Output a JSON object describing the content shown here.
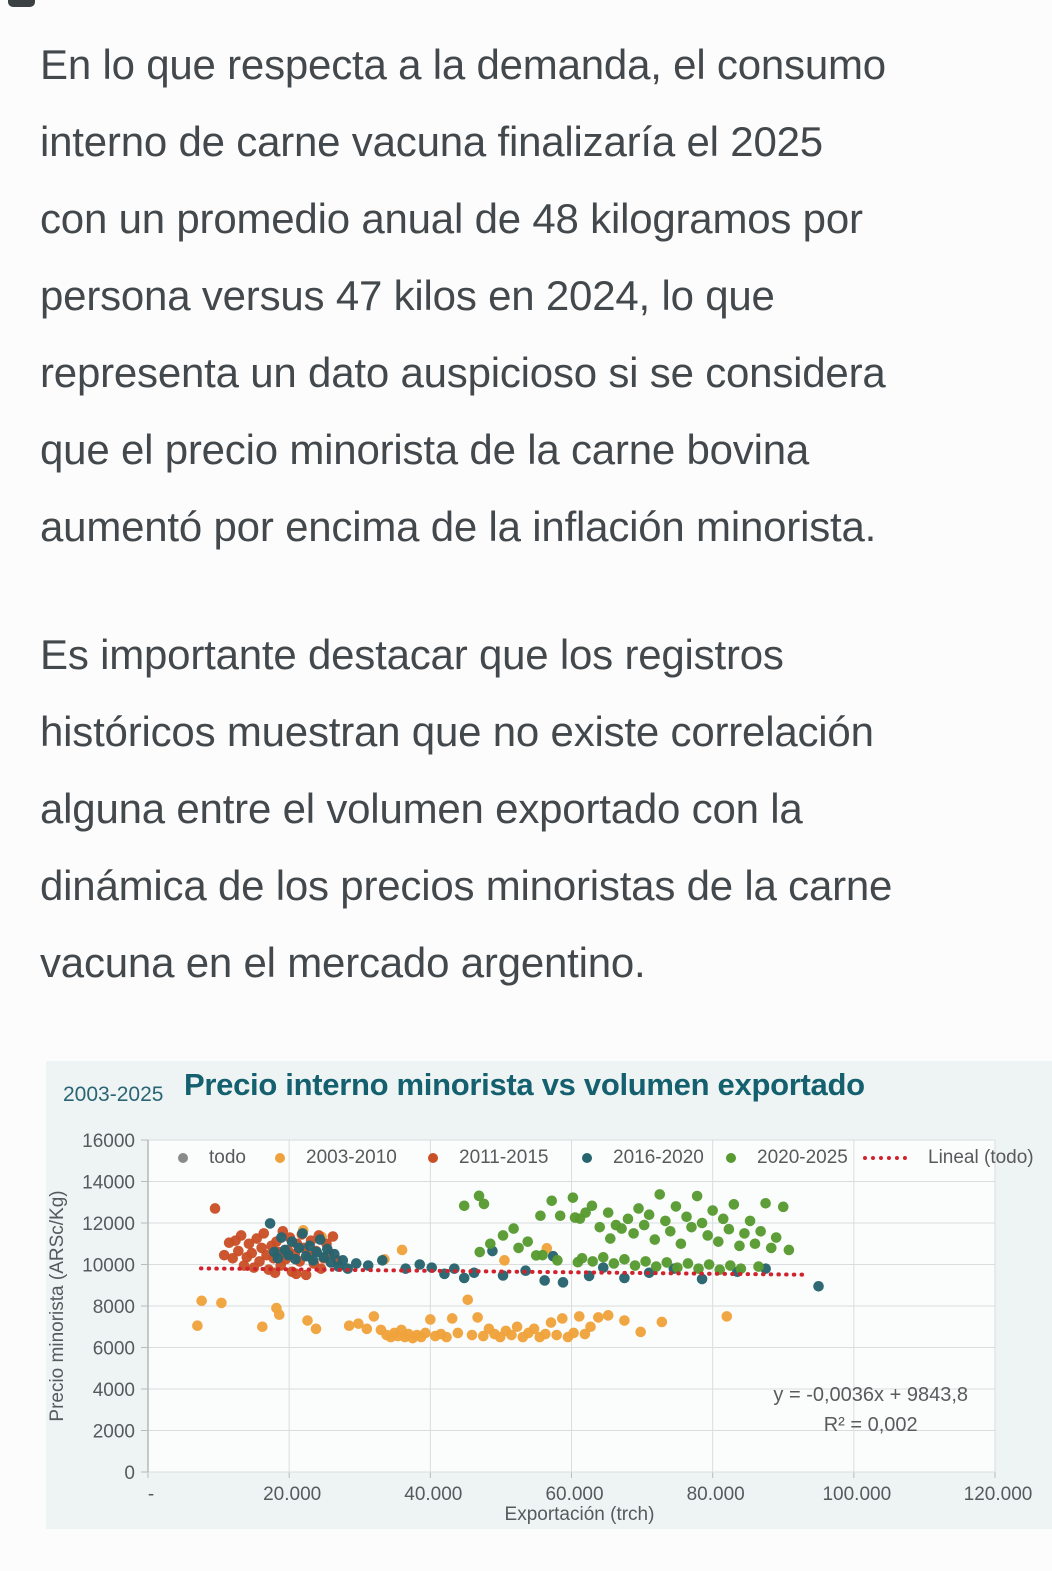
{
  "article": {
    "paragraphs": [
      {
        "lines": [
          "En lo que respecta a la demanda, el consumo",
          "interno de carne vacuna finalizaría el 2025",
          "con un promedio anual de 48 kilogramos por",
          "persona versus 47 kilos en 2024, lo que",
          "representa un dato auspicioso si se considera",
          "que el precio minorista de la carne bovina",
          "aumentó por encima de la inflación minorista."
        ]
      },
      {
        "lines": [
          "Es importante destacar que los registros",
          "históricos muestran que no existe correlación",
          "alguna entre el volumen exportado con la",
          "dinámica de los precios minoristas de la carne",
          "vacuna en el mercado argentino."
        ]
      }
    ]
  },
  "chart_data": {
    "type": "scatter",
    "title": "Precio interno minorista vs volumen exportado",
    "subtitle": "2003-2025",
    "title_color": "#14606f",
    "xlabel": "Exportación (trch)",
    "ylabel": "Precio minorista (ARSc/Kg)",
    "xlim": [
      0,
      120000
    ],
    "ylim": [
      0,
      16000
    ],
    "x_ticks": [
      "-",
      "20.000",
      "40.000",
      "60.000",
      "80.000",
      "100.000",
      "120.000"
    ],
    "y_ticks": [
      "0",
      "2000",
      "4000",
      "6000",
      "8000",
      "10000",
      "12000",
      "14000",
      "16000"
    ],
    "grid": true,
    "legend_position": "top",
    "trendline": {
      "label": "Lineal (todo)",
      "color": "#d0232e",
      "x1": 7500,
      "y1": 9812,
      "x2": 93500,
      "y2": 9507,
      "equation": "y = -0,0036x + 9843,8",
      "r2": "R² = 0,002"
    },
    "series": [
      {
        "name": "todo",
        "color": "#8a8a8a",
        "points": []
      },
      {
        "name": "2003-2010",
        "color": "#efa23b",
        "points": [
          [
            22000,
            11650
          ],
          [
            24600,
            11330
          ],
          [
            33500,
            10250
          ],
          [
            36000,
            10700
          ],
          [
            50500,
            10200
          ],
          [
            56500,
            10780
          ],
          [
            7600,
            8250
          ],
          [
            7000,
            7050
          ],
          [
            10400,
            8150
          ],
          [
            16200,
            7000
          ],
          [
            18200,
            7900
          ],
          [
            18600,
            7580
          ],
          [
            22600,
            7300
          ],
          [
            23800,
            6900
          ],
          [
            28500,
            7050
          ],
          [
            29800,
            7150
          ],
          [
            31000,
            6900
          ],
          [
            32000,
            7500
          ],
          [
            33000,
            6850
          ],
          [
            33800,
            6600
          ],
          [
            34400,
            6500
          ],
          [
            34900,
            6700
          ],
          [
            35400,
            6550
          ],
          [
            35900,
            6850
          ],
          [
            36400,
            6500
          ],
          [
            36900,
            6650
          ],
          [
            37500,
            6450
          ],
          [
            38100,
            6600
          ],
          [
            38700,
            6500
          ],
          [
            39300,
            6700
          ],
          [
            40000,
            7350
          ],
          [
            40700,
            6550
          ],
          [
            41500,
            6650
          ],
          [
            42300,
            6500
          ],
          [
            43100,
            7400
          ],
          [
            43900,
            6700
          ],
          [
            45300,
            8300
          ],
          [
            45900,
            6600
          ],
          [
            46700,
            7450
          ],
          [
            47500,
            6550
          ],
          [
            48300,
            6900
          ],
          [
            49100,
            6650
          ],
          [
            49900,
            6500
          ],
          [
            50700,
            6800
          ],
          [
            51500,
            6600
          ],
          [
            52300,
            7000
          ],
          [
            53100,
            6500
          ],
          [
            53900,
            6700
          ],
          [
            54700,
            6900
          ],
          [
            55500,
            6500
          ],
          [
            56300,
            6650
          ],
          [
            57100,
            7200
          ],
          [
            57900,
            6600
          ],
          [
            58700,
            7400
          ],
          [
            59500,
            6500
          ],
          [
            60300,
            6700
          ],
          [
            61100,
            7500
          ],
          [
            61900,
            6650
          ],
          [
            62700,
            7000
          ],
          [
            63800,
            7450
          ],
          [
            65200,
            7550
          ],
          [
            67500,
            7300
          ],
          [
            69800,
            6750
          ],
          [
            72800,
            7230
          ],
          [
            82000,
            7500
          ]
        ]
      },
      {
        "name": "2011-2015",
        "color": "#c94f26",
        "points": [
          [
            9500,
            12700
          ],
          [
            10800,
            10450
          ],
          [
            11500,
            11050
          ],
          [
            12000,
            10300
          ],
          [
            12400,
            11150
          ],
          [
            12800,
            10650
          ],
          [
            13200,
            11400
          ],
          [
            13600,
            9950
          ],
          [
            14000,
            10350
          ],
          [
            14300,
            11000
          ],
          [
            14700,
            10550
          ],
          [
            15000,
            9850
          ],
          [
            15400,
            11250
          ],
          [
            15800,
            10150
          ],
          [
            16100,
            10800
          ],
          [
            16400,
            11500
          ],
          [
            16800,
            10450
          ],
          [
            17100,
            9750
          ],
          [
            17500,
            10900
          ],
          [
            17800,
            10300
          ],
          [
            18200,
            11100
          ],
          [
            18500,
            10600
          ],
          [
            18800,
            9950
          ],
          [
            19100,
            11600
          ],
          [
            19500,
            10250
          ],
          [
            19800,
            10700
          ],
          [
            20100,
            11300
          ],
          [
            20400,
            9650
          ],
          [
            20800,
            10500
          ],
          [
            21100,
            11000
          ],
          [
            21500,
            10150
          ],
          [
            21800,
            11450
          ],
          [
            22100,
            10800
          ],
          [
            22400,
            9500
          ],
          [
            22800,
            10400
          ],
          [
            23100,
            11150
          ],
          [
            23500,
            10050
          ],
          [
            23800,
            10650
          ],
          [
            24200,
            11400
          ],
          [
            24500,
            9800
          ],
          [
            24900,
            10300
          ],
          [
            25300,
            11000
          ],
          [
            25700,
            10550
          ],
          [
            26200,
            11350
          ],
          [
            26800,
            10200
          ],
          [
            21000,
            9550
          ],
          [
            18000,
            9600
          ]
        ]
      },
      {
        "name": "2016-2020",
        "color": "#26646e",
        "points": [
          [
            17300,
            11980
          ],
          [
            17900,
            10600
          ],
          [
            18400,
            10300
          ],
          [
            18900,
            11300
          ],
          [
            19400,
            10700
          ],
          [
            19900,
            10450
          ],
          [
            20400,
            11100
          ],
          [
            20900,
            10250
          ],
          [
            21400,
            10800
          ],
          [
            21900,
            11500
          ],
          [
            22400,
            10400
          ],
          [
            22900,
            10900
          ],
          [
            23400,
            10200
          ],
          [
            23900,
            10600
          ],
          [
            24400,
            11200
          ],
          [
            24900,
            10350
          ],
          [
            25400,
            10750
          ],
          [
            25900,
            10100
          ],
          [
            26400,
            10500
          ],
          [
            27000,
            9900
          ],
          [
            27600,
            10200
          ],
          [
            28300,
            9800
          ],
          [
            29500,
            10050
          ],
          [
            31200,
            9950
          ],
          [
            33200,
            10200
          ],
          [
            36500,
            9800
          ],
          [
            38500,
            10000
          ],
          [
            40200,
            9850
          ],
          [
            42000,
            9550
          ],
          [
            43400,
            9800
          ],
          [
            44800,
            9350
          ],
          [
            46200,
            9600
          ],
          [
            48800,
            10650
          ],
          [
            50300,
            9470
          ],
          [
            53500,
            9700
          ],
          [
            56200,
            9230
          ],
          [
            57400,
            10400
          ],
          [
            58800,
            9140
          ],
          [
            62500,
            9450
          ],
          [
            64500,
            9850
          ],
          [
            67500,
            9350
          ],
          [
            71000,
            9600
          ],
          [
            74500,
            9800
          ],
          [
            78500,
            9300
          ],
          [
            83500,
            9650
          ],
          [
            87500,
            9800
          ],
          [
            95000,
            8950
          ]
        ]
      },
      {
        "name": "2020-2025",
        "color": "#579a30",
        "points": [
          [
            44800,
            12830
          ],
          [
            46900,
            13310
          ],
          [
            47600,
            12920
          ],
          [
            47000,
            10600
          ],
          [
            48500,
            11000
          ],
          [
            50300,
            11400
          ],
          [
            51800,
            11730
          ],
          [
            52500,
            10800
          ],
          [
            53800,
            11100
          ],
          [
            55000,
            10440
          ],
          [
            55600,
            12350
          ],
          [
            55900,
            10450
          ],
          [
            57200,
            13070
          ],
          [
            58000,
            10200
          ],
          [
            58400,
            12350
          ],
          [
            60200,
            13220
          ],
          [
            60500,
            12260
          ],
          [
            60900,
            10110
          ],
          [
            61200,
            12210
          ],
          [
            61500,
            10300
          ],
          [
            62000,
            12500
          ],
          [
            62900,
            12830
          ],
          [
            63000,
            10150
          ],
          [
            64000,
            11800
          ],
          [
            64500,
            10350
          ],
          [
            65200,
            12500
          ],
          [
            65500,
            11250
          ],
          [
            66000,
            10050
          ],
          [
            66300,
            11900
          ],
          [
            67100,
            11730
          ],
          [
            67500,
            10250
          ],
          [
            68000,
            12200
          ],
          [
            68800,
            11500
          ],
          [
            69000,
            9950
          ],
          [
            69500,
            12700
          ],
          [
            70300,
            11900
          ],
          [
            70500,
            10150
          ],
          [
            71000,
            12400
          ],
          [
            71800,
            11200
          ],
          [
            72000,
            9900
          ],
          [
            72500,
            13380
          ],
          [
            73300,
            12100
          ],
          [
            73500,
            10100
          ],
          [
            74000,
            11600
          ],
          [
            74800,
            12800
          ],
          [
            75000,
            9850
          ],
          [
            75500,
            11000
          ],
          [
            76300,
            12300
          ],
          [
            76500,
            10050
          ],
          [
            77000,
            11800
          ],
          [
            77800,
            13300
          ],
          [
            78000,
            9800
          ],
          [
            78500,
            12000
          ],
          [
            79300,
            11400
          ],
          [
            79500,
            10000
          ],
          [
            80000,
            12600
          ],
          [
            80800,
            11100
          ],
          [
            81000,
            9750
          ],
          [
            81500,
            12200
          ],
          [
            82300,
            11700
          ],
          [
            82500,
            9950
          ],
          [
            83000,
            12900
          ],
          [
            83800,
            10900
          ],
          [
            84000,
            9800
          ],
          [
            84500,
            11500
          ],
          [
            85300,
            12100
          ],
          [
            86000,
            11000
          ],
          [
            86500,
            9900
          ],
          [
            86800,
            11600
          ],
          [
            87500,
            12950
          ],
          [
            88300,
            10800
          ],
          [
            89000,
            11300
          ],
          [
            90000,
            12780
          ],
          [
            90800,
            10700
          ]
        ]
      }
    ]
  }
}
